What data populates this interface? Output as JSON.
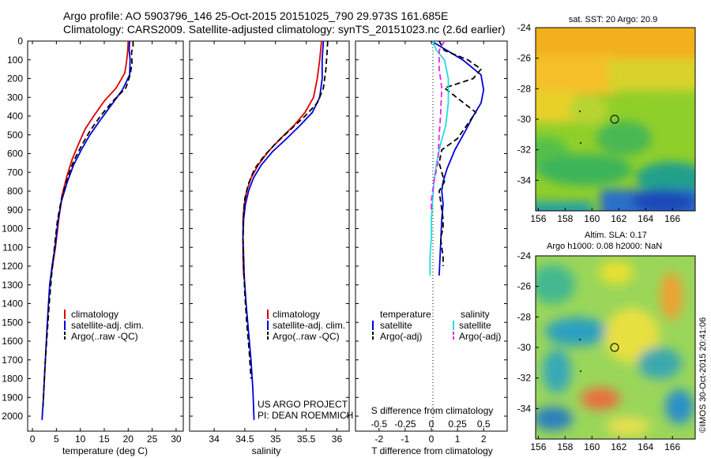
{
  "header": {
    "line1": "Argo profile: AO 5903796_146 25-Oct-2015 20151025_790 29.973S 161.685E",
    "line2": "Climatology: CARS2009. Satellite-adjusted climatology: synTS_20151023.nc (2.6d earlier)"
  },
  "project": {
    "line1": "US ARGO PROJECT",
    "line2": "PI: DEAN ROEMMICH"
  },
  "stamp": "©IMOS 30-Oct-2015 20:41:06",
  "colors": {
    "climatology": "#dd0000",
    "satellite": "#0000dd",
    "argo": "#000000",
    "sat_salinity": "#22dddd",
    "argo_salinity_adj": "#ee22ee"
  },
  "chart_data": [
    {
      "type": "line",
      "xlabel": "temperature (deg C)",
      "ylabel": "",
      "xlim": [
        -1,
        31.5
      ],
      "ylim": [
        2080,
        0
      ],
      "x_ticks": [
        0,
        5,
        10,
        15,
        20,
        25,
        30
      ],
      "y_ticks": [
        0,
        100,
        200,
        300,
        400,
        500,
        600,
        700,
        800,
        900,
        1000,
        1100,
        1200,
        1300,
        1400,
        1500,
        1600,
        1700,
        1800,
        1900,
        2000
      ],
      "legend": [
        "climatology",
        "satellite-adj. clim.",
        "Argo(..raw -QC)"
      ],
      "series": [
        {
          "name": "climatology",
          "style": "solid",
          "color": "#dd0000",
          "x": [
            20.0,
            19.9,
            19.7,
            19.3,
            17.5,
            15.0,
            12.8,
            11.0,
            9.6,
            8.3,
            7.2,
            6.2,
            5.5,
            4.8,
            4.2,
            3.6
          ],
          "y": [
            0,
            50,
            100,
            170,
            250,
            320,
            400,
            470,
            550,
            630,
            720,
            820,
            950,
            1100,
            1200,
            1300
          ]
        },
        {
          "name": "satellite-adj. clim.",
          "style": "solid",
          "color": "#0000dd",
          "x": [
            20.3,
            20.2,
            20.4,
            20.3,
            18.8,
            16.5,
            14.2,
            12.0,
            10.2,
            8.6,
            7.3,
            6.1,
            5.4,
            4.7,
            4.1,
            3.6,
            3.1,
            2.7,
            2.3,
            2.0
          ],
          "y": [
            0,
            50,
            100,
            180,
            260,
            340,
            420,
            500,
            580,
            660,
            750,
            850,
            950,
            1100,
            1200,
            1300,
            1500,
            1700,
            1900,
            2020
          ]
        },
        {
          "name": "Argo(..raw -QC)",
          "style": "dashed",
          "color": "#000000",
          "x": [
            21.0,
            21.0,
            20.7,
            20.8,
            20.4,
            19.5,
            16.8,
            14.2,
            12.0,
            10.2,
            8.6,
            7.2,
            6.0,
            5.2,
            4.6,
            4.0,
            3.5,
            3.1,
            2.7,
            2.4,
            2.2
          ],
          "y": [
            0,
            30,
            60,
            120,
            180,
            250,
            320,
            400,
            480,
            560,
            640,
            740,
            850,
            960,
            1100,
            1250,
            1400,
            1550,
            1700,
            1850,
            1950
          ]
        }
      ]
    },
    {
      "type": "line",
      "xlabel": "salinity",
      "ylabel": "",
      "xlim": [
        33.6,
        36.2
      ],
      "ylim": [
        2080,
        0
      ],
      "x_ticks": [
        34,
        34.5,
        35,
        35.5,
        36
      ],
      "legend": [
        "climatology",
        "satellite-adj. clim.",
        "Argo(..raw -QC)"
      ],
      "series": [
        {
          "name": "climatology",
          "style": "solid",
          "color": "#dd0000",
          "x": [
            35.75,
            35.72,
            35.68,
            35.62,
            35.48,
            35.3,
            35.08,
            34.88,
            34.72,
            34.6,
            34.53,
            34.49,
            34.47,
            34.47,
            34.47,
            34.48
          ],
          "y": [
            0,
            100,
            200,
            300,
            380,
            450,
            520,
            590,
            660,
            730,
            800,
            870,
            950,
            1050,
            1150,
            1250
          ]
        },
        {
          "name": "satellite-adj. clim.",
          "style": "solid",
          "color": "#0000dd",
          "x": [
            35.78,
            35.76,
            35.76,
            35.72,
            35.6,
            35.4,
            35.18,
            34.95,
            34.77,
            34.64,
            34.56,
            34.51,
            34.48,
            34.47,
            34.48,
            34.49,
            34.52,
            34.56,
            34.6,
            34.63,
            34.65
          ],
          "y": [
            0,
            100,
            200,
            300,
            380,
            450,
            520,
            590,
            660,
            730,
            800,
            870,
            950,
            1050,
            1150,
            1250,
            1400,
            1550,
            1700,
            1850,
            2020
          ]
        },
        {
          "name": "Argo(..raw -QC)",
          "style": "dashed",
          "color": "#000000",
          "x": [
            35.85,
            35.84,
            35.82,
            35.78,
            35.68,
            35.48,
            35.25,
            35.02,
            34.82,
            34.66,
            34.56,
            34.5,
            34.48,
            34.47,
            34.48,
            34.5,
            34.53,
            34.57,
            34.6
          ],
          "y": [
            0,
            60,
            150,
            250,
            330,
            400,
            470,
            540,
            610,
            680,
            760,
            840,
            920,
            1050,
            1200,
            1350,
            1500,
            1650,
            1800
          ]
        }
      ]
    },
    {
      "type": "line",
      "xlabel": "T difference from climatology",
      "x2label": "S difference from climatology",
      "xlim": [
        -2.9,
        2.9
      ],
      "ylim": [
        2080,
        0
      ],
      "x_ticks": [
        -2,
        -1,
        0,
        1,
        2
      ],
      "x2_ticks": [
        "-0.5",
        "-0.25",
        "0",
        "0.25",
        "0.5"
      ],
      "legend_headers": [
        "temperature",
        "salinity"
      ],
      "legend": [
        "satellite",
        "Argo(-adj)",
        "satellite",
        "Argo(-adj)"
      ],
      "series": [
        {
          "name": "satellite",
          "group": "temperature",
          "style": "solid",
          "color": "#0000dd",
          "x": [
            0,
            0.6,
            1.2,
            1.9,
            2.0,
            1.9,
            1.6,
            1.3,
            0.9,
            0.6,
            0.45,
            0.4,
            0.45,
            0.4,
            0.35,
            0.3
          ],
          "y": [
            0,
            50,
            100,
            180,
            260,
            330,
            400,
            480,
            580,
            680,
            750,
            800,
            870,
            950,
            1100,
            1250
          ]
        },
        {
          "name": "Argo(-adj)",
          "group": "temperature",
          "style": "dashed",
          "color": "#000000",
          "x": [
            0.3,
            0.5,
            1.4,
            1.9,
            1.6,
            0.5,
            1.7,
            1.0,
            0.4,
            0.3,
            0.5,
            0.3,
            0.35,
            0.45,
            0.45,
            0.35,
            0.4,
            0.45,
            0.45
          ],
          "y": [
            0,
            50,
            100,
            150,
            200,
            250,
            380,
            520,
            580,
            650,
            750,
            800,
            850,
            950,
            1000,
            1050,
            1100,
            1150,
            1200
          ]
        },
        {
          "name": "satellite",
          "group": "salinity",
          "style": "solid",
          "color": "#22dddd",
          "x": [
            0.05,
            0.2,
            0.5,
            0.65,
            0.65,
            0.55,
            0.35,
            0.2,
            0.1,
            0.05,
            0.0,
            0.0,
            -0.05,
            -0.05
          ],
          "y": [
            0,
            50,
            100,
            200,
            330,
            450,
            550,
            650,
            750,
            850,
            950,
            1050,
            1150,
            1250
          ]
        },
        {
          "name": "Argo(-adj)",
          "group": "salinity",
          "style": "dashed",
          "color": "#ee22ee",
          "x": [
            0.5,
            0.3,
            0.3,
            0.4,
            0.35,
            0.3,
            0.25,
            0.1,
            0.0,
            0.0
          ],
          "y": [
            0,
            50,
            150,
            250,
            400,
            500,
            650,
            750,
            850,
            900
          ]
        }
      ]
    },
    {
      "type": "heatmap",
      "title": "sat. SST: 20 Argo: 20.9",
      "xlim": [
        155.8,
        167.7
      ],
      "ylim": [
        -36,
        -24
      ],
      "x_ticks": [
        156,
        158,
        160,
        162,
        164,
        166
      ],
      "y_ticks": [
        -24,
        -26,
        -28,
        -30,
        -32,
        -34
      ],
      "argo_position": [
        161.685,
        -29.973
      ]
    },
    {
      "type": "heatmap",
      "title_line1": "Altim. SLA: 0.17",
      "title_line2": "Argo h1000: 0.08 h2000: NaN",
      "xlim": [
        155.8,
        167.7
      ],
      "ylim": [
        -36,
        -24
      ],
      "x_ticks": [
        156,
        158,
        160,
        162,
        164,
        166
      ],
      "y_ticks": [
        -24,
        -26,
        -28,
        -30,
        -32,
        -34
      ],
      "argo_position": [
        161.685,
        -29.973
      ]
    }
  ]
}
